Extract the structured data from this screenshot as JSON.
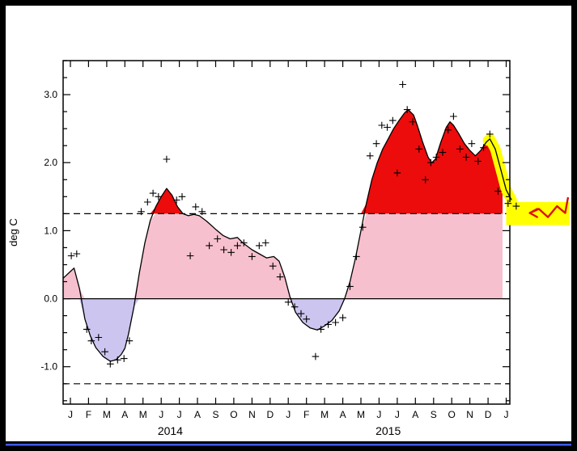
{
  "window": {
    "frame_color": "#000000",
    "screen_color": "#ffffff",
    "bottom_strip_color": "#3f5be8"
  },
  "chart_data": {
    "type": "line",
    "title": "",
    "ylabel": "deg C",
    "x_axis": {
      "tick_labels": [
        "J",
        "F",
        "M",
        "A",
        "M",
        "J",
        "J",
        "A",
        "S",
        "O",
        "N",
        "D",
        "J",
        "F",
        "M",
        "A",
        "M",
        "J",
        "J",
        "A",
        "S",
        "O",
        "N",
        "D",
        "J"
      ],
      "year_labels": [
        {
          "text": "2014",
          "x": 5.5
        },
        {
          "text": "2015",
          "x": 17.5
        }
      ],
      "xlim": [
        -0.4,
        24.2
      ]
    },
    "y_axis": {
      "ticks": [
        -1.0,
        0.0,
        1.0,
        2.0,
        3.0
      ],
      "tick_labels": [
        "-1.0",
        "0.0",
        "1.0",
        "2.0",
        "3.0"
      ],
      "minor_step": 0.25,
      "ylim": [
        -1.55,
        3.5
      ]
    },
    "thresholds": {
      "upper": 1.25,
      "lower": -1.25,
      "zero": 0.0,
      "style": "dashed"
    },
    "colors": {
      "line": "#000000",
      "marker": "#000000",
      "axis": "#000000",
      "fill_above_upper": "#ec0c0c",
      "fill_positive": "#f7c0ce",
      "fill_negative": "#ccc5f0",
      "highlight": "#ffff00",
      "arrow": "#dd1010"
    },
    "fill_end_x": 23.8,
    "line_points": [
      [
        -0.4,
        0.3
      ],
      [
        0,
        0.4
      ],
      [
        0.2,
        0.45
      ],
      [
        0.5,
        0.15
      ],
      [
        0.8,
        -0.3
      ],
      [
        1.1,
        -0.55
      ],
      [
        1.4,
        -0.72
      ],
      [
        1.8,
        -0.85
      ],
      [
        2.2,
        -0.92
      ],
      [
        2.5,
        -0.9
      ],
      [
        2.8,
        -0.82
      ],
      [
        3.0,
        -0.73
      ],
      [
        3.2,
        -0.52
      ],
      [
        3.5,
        -0.12
      ],
      [
        3.8,
        0.38
      ],
      [
        4.1,
        0.82
      ],
      [
        4.4,
        1.15
      ],
      [
        4.7,
        1.35
      ],
      [
        5.0,
        1.5
      ],
      [
        5.3,
        1.62
      ],
      [
        5.6,
        1.52
      ],
      [
        5.9,
        1.35
      ],
      [
        6.2,
        1.25
      ],
      [
        6.5,
        1.22
      ],
      [
        6.8,
        1.24
      ],
      [
        7.1,
        1.22
      ],
      [
        7.5,
        1.14
      ],
      [
        8.0,
        1.02
      ],
      [
        8.4,
        0.93
      ],
      [
        8.8,
        0.88
      ],
      [
        9.2,
        0.9
      ],
      [
        9.5,
        0.82
      ],
      [
        10.0,
        0.72
      ],
      [
        10.4,
        0.66
      ],
      [
        10.8,
        0.6
      ],
      [
        11.2,
        0.62
      ],
      [
        11.5,
        0.55
      ],
      [
        11.8,
        0.32
      ],
      [
        12.1,
        0.02
      ],
      [
        12.4,
        -0.2
      ],
      [
        12.8,
        -0.35
      ],
      [
        13.2,
        -0.43
      ],
      [
        13.6,
        -0.46
      ],
      [
        14.0,
        -0.4
      ],
      [
        14.4,
        -0.32
      ],
      [
        14.8,
        -0.18
      ],
      [
        15.1,
        0.0
      ],
      [
        15.4,
        0.25
      ],
      [
        15.7,
        0.6
      ],
      [
        16.0,
        1.0
      ],
      [
        16.3,
        1.4
      ],
      [
        16.6,
        1.75
      ],
      [
        16.9,
        2.0
      ],
      [
        17.2,
        2.2
      ],
      [
        17.5,
        2.35
      ],
      [
        17.8,
        2.5
      ],
      [
        18.1,
        2.62
      ],
      [
        18.4,
        2.73
      ],
      [
        18.6,
        2.78
      ],
      [
        18.9,
        2.7
      ],
      [
        19.1,
        2.55
      ],
      [
        19.4,
        2.3
      ],
      [
        19.7,
        2.08
      ],
      [
        19.9,
        2.0
      ],
      [
        20.1,
        2.05
      ],
      [
        20.4,
        2.3
      ],
      [
        20.7,
        2.52
      ],
      [
        20.9,
        2.6
      ],
      [
        21.1,
        2.55
      ],
      [
        21.4,
        2.42
      ],
      [
        21.7,
        2.28
      ],
      [
        22.0,
        2.18
      ],
      [
        22.3,
        2.1
      ],
      [
        22.6,
        2.18
      ],
      [
        22.9,
        2.3
      ],
      [
        23.1,
        2.35
      ],
      [
        23.4,
        2.2
      ],
      [
        23.7,
        1.9
      ],
      [
        24.0,
        1.6
      ],
      [
        24.3,
        1.45
      ]
    ],
    "marker_points": [
      [
        0.05,
        0.63
      ],
      [
        0.35,
        0.66
      ],
      [
        0.9,
        -0.45
      ],
      [
        1.15,
        -0.62
      ],
      [
        1.55,
        -0.57
      ],
      [
        1.9,
        -0.78
      ],
      [
        2.2,
        -0.96
      ],
      [
        2.6,
        -0.9
      ],
      [
        2.95,
        -0.88
      ],
      [
        3.25,
        -0.62
      ],
      [
        3.9,
        1.28
      ],
      [
        4.25,
        1.42
      ],
      [
        4.55,
        1.55
      ],
      [
        4.85,
        1.5
      ],
      [
        5.3,
        2.05
      ],
      [
        5.85,
        1.45
      ],
      [
        6.15,
        1.5
      ],
      [
        6.6,
        0.63
      ],
      [
        6.9,
        1.35
      ],
      [
        7.25,
        1.28
      ],
      [
        7.65,
        0.78
      ],
      [
        8.1,
        0.88
      ],
      [
        8.45,
        0.72
      ],
      [
        8.85,
        0.68
      ],
      [
        9.2,
        0.78
      ],
      [
        9.55,
        0.82
      ],
      [
        10.0,
        0.62
      ],
      [
        10.4,
        0.78
      ],
      [
        10.75,
        0.82
      ],
      [
        11.15,
        0.48
      ],
      [
        11.55,
        0.32
      ],
      [
        12.0,
        -0.05
      ],
      [
        12.35,
        -0.12
      ],
      [
        12.7,
        -0.22
      ],
      [
        13.0,
        -0.3
      ],
      [
        13.5,
        -0.85
      ],
      [
        13.8,
        -0.45
      ],
      [
        14.2,
        -0.38
      ],
      [
        14.6,
        -0.35
      ],
      [
        15.0,
        -0.28
      ],
      [
        15.4,
        0.18
      ],
      [
        15.75,
        0.62
      ],
      [
        16.1,
        1.05
      ],
      [
        16.5,
        2.1
      ],
      [
        16.85,
        2.28
      ],
      [
        17.15,
        2.55
      ],
      [
        17.45,
        2.52
      ],
      [
        17.75,
        2.62
      ],
      [
        18.0,
        1.85
      ],
      [
        18.3,
        3.15
      ],
      [
        18.55,
        2.78
      ],
      [
        18.85,
        2.6
      ],
      [
        19.2,
        2.2
      ],
      [
        19.55,
        1.75
      ],
      [
        19.85,
        2.0
      ],
      [
        20.15,
        2.08
      ],
      [
        20.5,
        2.15
      ],
      [
        20.8,
        2.48
      ],
      [
        21.1,
        2.68
      ],
      [
        21.45,
        2.2
      ],
      [
        21.8,
        2.08
      ],
      [
        22.1,
        2.28
      ],
      [
        22.45,
        2.02
      ],
      [
        22.75,
        2.22
      ],
      [
        23.1,
        2.42
      ],
      [
        23.55,
        1.58
      ],
      [
        24.1,
        1.4
      ],
      [
        24.55,
        1.36
      ]
    ],
    "annotations": {
      "highlight_line": {
        "x_start": 23.0,
        "x_end": 24.3
      },
      "highlight_band": {
        "x_start": 24.0,
        "x_end": 27.5,
        "v_low": 1.08,
        "v_high": 1.42
      },
      "arrow_points": [
        [
          27.4,
          1.48
        ],
        [
          27.25,
          1.26
        ],
        [
          26.8,
          1.36
        ],
        [
          26.3,
          1.2
        ],
        [
          25.8,
          1.32
        ],
        [
          25.3,
          1.26
        ]
      ]
    }
  }
}
